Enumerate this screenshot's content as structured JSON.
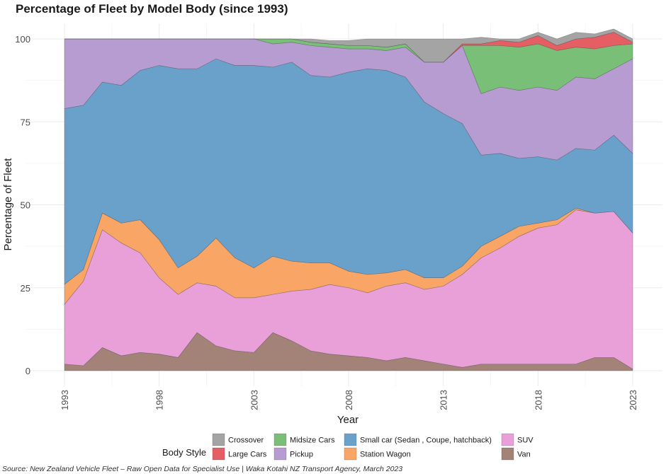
{
  "chart_data": {
    "type": "area",
    "stacked": true,
    "title": "Percentage of Fleet by Model Body (since 1993)",
    "xlabel": "Year",
    "ylabel": "Percentage of Fleet",
    "xlim": [
      1993,
      2023
    ],
    "ylim": [
      0,
      100
    ],
    "x_ticks": [
      1993,
      1998,
      2003,
      2008,
      2013,
      2018,
      2023
    ],
    "y_ticks": [
      0,
      25,
      50,
      75,
      100
    ],
    "x_tick_labels": [
      "1993",
      "1998",
      "2003",
      "2008",
      "2013",
      "2018",
      "2023"
    ],
    "y_tick_labels": [
      "0",
      "25",
      "50",
      "75",
      "100"
    ],
    "legend_title": "Body Style",
    "legend_position": "bottom",
    "caption": "Source: New Zealand Vehicle Fleet – Raw Open Data for Specialist Use | Waka Kotahi NZ Transport Agency, March 2023",
    "x": [
      1993,
      1994,
      1995,
      1996,
      1997,
      1998,
      1999,
      2000,
      2001,
      2002,
      2003,
      2004,
      2005,
      2006,
      2007,
      2008,
      2009,
      2010,
      2011,
      2012,
      2013,
      2014,
      2015,
      2016,
      2017,
      2018,
      2019,
      2020,
      2021,
      2022,
      2023
    ],
    "series": [
      {
        "name": "Van",
        "color": "#a38378",
        "values": [
          2,
          1.5,
          7,
          4.5,
          5.5,
          5,
          4,
          11.5,
          7.5,
          6,
          5.5,
          11.5,
          9,
          6,
          5,
          4.5,
          4,
          3,
          4,
          3,
          2,
          1,
          2,
          2,
          2,
          2,
          2,
          2,
          4,
          4,
          0.5
        ]
      },
      {
        "name": "SUV",
        "color": "#e9a0d8",
        "values": [
          18,
          25.5,
          35.5,
          34,
          30,
          23,
          19,
          15,
          18,
          16,
          16.5,
          11.5,
          15,
          18.5,
          21,
          20.5,
          19.5,
          22.5,
          22.5,
          21.5,
          23.5,
          28,
          32,
          35,
          38.5,
          41,
          42,
          46.5,
          43.5,
          44,
          41
        ]
      },
      {
        "name": "Station Wagon",
        "color": "#f9a566",
        "values": [
          6,
          3.5,
          5,
          6,
          10,
          11.5,
          8,
          8,
          14.5,
          12,
          9,
          11.5,
          9,
          8,
          6.5,
          5,
          5.5,
          4,
          4,
          3.5,
          2.5,
          2.5,
          3.5,
          3.5,
          3,
          1.5,
          1.5,
          0.5,
          0,
          0,
          0
        ]
      },
      {
        "name": "Small car (Sedan , Coupe, hatchback)",
        "color": "#6aa1cb",
        "values": [
          53,
          49.5,
          39.5,
          41.5,
          45,
          52.5,
          60,
          56.5,
          54,
          58,
          61,
          57,
          60,
          56.5,
          56,
          60,
          62,
          61,
          58,
          53,
          49.5,
          43,
          27.5,
          25,
          20.5,
          20,
          18,
          18,
          19,
          23,
          24
        ]
      },
      {
        "name": "Pickup",
        "color": "#b79cd2",
        "values": [
          21,
          20,
          13,
          14,
          9.5,
          8,
          9,
          9,
          6,
          8,
          8,
          7,
          6,
          9,
          9,
          7,
          6,
          6,
          9,
          12,
          15.5,
          23.5,
          18.5,
          20,
          20.5,
          21,
          21,
          21.5,
          21.5,
          20,
          28.5
        ]
      },
      {
        "name": "Midsize Cars",
        "color": "#79bf77",
        "values": [
          0,
          0,
          0,
          0,
          0,
          0,
          0,
          0,
          0,
          0,
          0,
          1.5,
          1,
          1,
          1,
          1,
          1,
          1,
          1,
          0,
          0,
          0,
          14.5,
          12.5,
          13,
          13,
          12,
          9,
          9,
          7,
          4.5
        ]
      },
      {
        "name": "Large Cars",
        "color": "#e55e63",
        "values": [
          0,
          0,
          0,
          0,
          0,
          0,
          0,
          0,
          0,
          0,
          0,
          0,
          0,
          0,
          0,
          0,
          0,
          0,
          0,
          0,
          0,
          0.5,
          0.5,
          1.5,
          1.5,
          2.5,
          1.5,
          2.5,
          3.5,
          4,
          0.5
        ]
      },
      {
        "name": "Crossover",
        "color": "#a4a4a4",
        "values": [
          0,
          0,
          0,
          0,
          0,
          0,
          0,
          0,
          0,
          0,
          0,
          0,
          0,
          1,
          1,
          1.5,
          2,
          2.5,
          1.5,
          7,
          7,
          1.5,
          2,
          0.5,
          1,
          1,
          2,
          2,
          1,
          1,
          1
        ]
      }
    ],
    "legend_order": [
      "Crossover",
      "Large Cars",
      "Midsize Cars",
      "Pickup",
      "Small car (Sedan , Coupe, hatchback)",
      "Station Wagon",
      "SUV",
      "Van"
    ]
  }
}
